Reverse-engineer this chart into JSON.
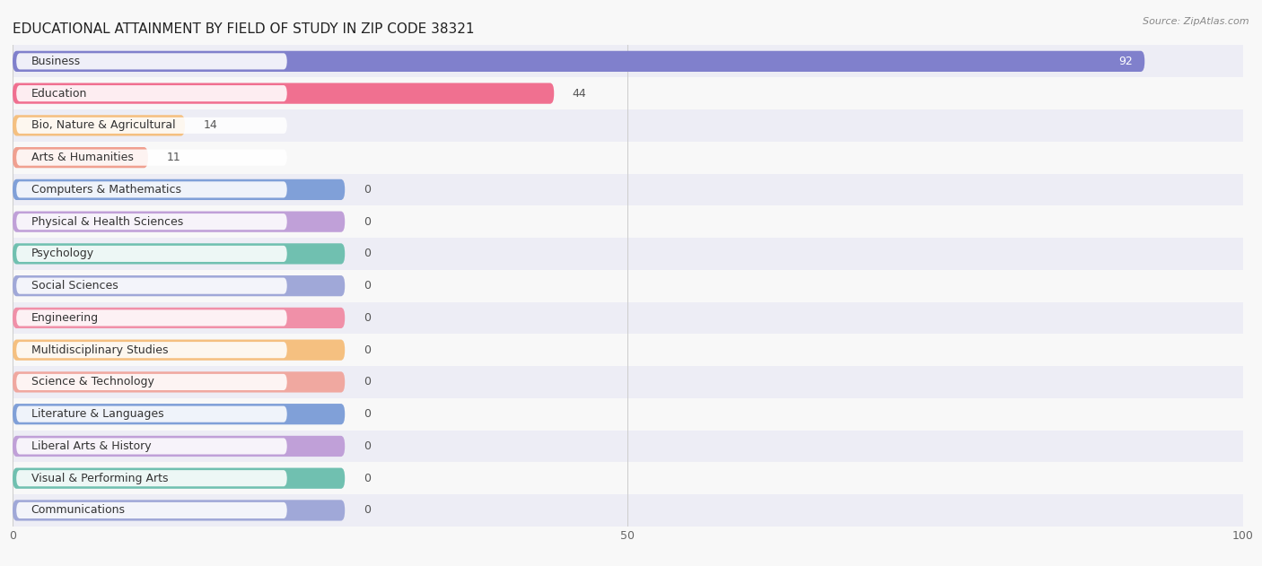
{
  "title": "EDUCATIONAL ATTAINMENT BY FIELD OF STUDY IN ZIP CODE 38321",
  "source": "Source: ZipAtlas.com",
  "categories": [
    "Business",
    "Education",
    "Bio, Nature & Agricultural",
    "Arts & Humanities",
    "Computers & Mathematics",
    "Physical & Health Sciences",
    "Psychology",
    "Social Sciences",
    "Engineering",
    "Multidisciplinary Studies",
    "Science & Technology",
    "Literature & Languages",
    "Liberal Arts & History",
    "Visual & Performing Arts",
    "Communications"
  ],
  "values": [
    92,
    44,
    14,
    11,
    0,
    0,
    0,
    0,
    0,
    0,
    0,
    0,
    0,
    0,
    0
  ],
  "bar_colors": [
    "#8080cc",
    "#f07090",
    "#f5c080",
    "#f0a090",
    "#80a0d8",
    "#c0a0d8",
    "#70c0b0",
    "#a0a8d8",
    "#f090a8",
    "#f5c080",
    "#f0a8a0",
    "#80a0d8",
    "#c0a0d8",
    "#70c0b0",
    "#a0a8d8"
  ],
  "xlim": [
    0,
    100
  ],
  "xticks": [
    0,
    50,
    100
  ],
  "background_color": "#f8f8f8",
  "row_bg_even": "#ededf5",
  "row_bg_odd": "#f8f8f8",
  "title_fontsize": 11,
  "label_fontsize": 9,
  "value_fontsize": 9
}
